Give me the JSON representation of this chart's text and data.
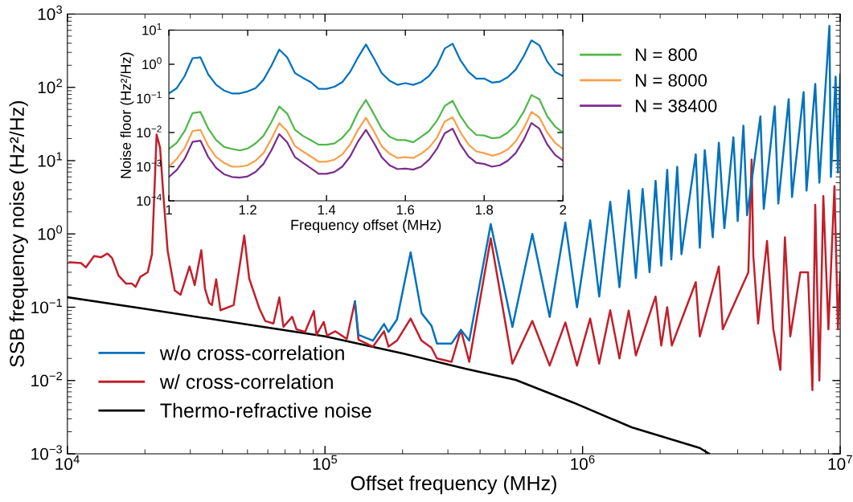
{
  "chart_data": [
    {
      "type": "line",
      "xlabel": "Offset frequency (MHz)",
      "ylabel": "SSB frequency noise (Hz²/Hz)",
      "log": "xy",
      "legend": "bottom left",
      "grid": false,
      "xlim": [
        10000,
        10000000
      ],
      "ylim": [
        0.001,
        1000
      ],
      "xticks": [
        {
          "value": 10000,
          "label": "10$^{4}$"
        },
        {
          "value": 100000,
          "label": "10$^{5}$"
        },
        {
          "value": 1000000,
          "label": "10$^{6}$"
        },
        {
          "value": 10000000,
          "label": "10$^{7}$"
        }
      ],
      "yticks": [
        {
          "value": 0.001,
          "label": "10$^{−3}$"
        },
        {
          "value": 0.01,
          "label": "10$^{−2}$"
        },
        {
          "value": 0.1,
          "label": "10$^{−1}$"
        },
        {
          "value": 1,
          "label": "10$^{0}$"
        },
        {
          "value": 10,
          "label": "10$^{1}$"
        },
        {
          "value": 100,
          "label": "10$^{2}$"
        },
        {
          "value": 1000,
          "label": "10$^{3}$"
        }
      ],
      "series": [
        {
          "name": "w/o cross-correlation",
          "color": "#0072bd",
          "x": [
            130700,
            134900,
            153500,
            169500,
            176500,
            190300,
            215000,
            237000,
            259000,
            272000,
            310000,
            337000,
            363000,
            440000,
            534000,
            638000,
            745000,
            857000,
            951000,
            1070000,
            1160000,
            1280000,
            1390000,
            1510000,
            1610000,
            1710000,
            1820000,
            1920000,
            2020000,
            2130000,
            2210000,
            2330000,
            2420000,
            2750000,
            2850000,
            2980000,
            3200000,
            3380000,
            3550000,
            3850000,
            4000000,
            4210000,
            4350000,
            4900000,
            5050000,
            5570000,
            5750000,
            6310000,
            6500000,
            7210000,
            7400000,
            8000000,
            8300000,
            9080000,
            9200000,
            9600000,
            9800000,
            10000000
          ],
          "values": [
            0.12,
            0.042,
            0.035,
            0.059,
            0.046,
            0.068,
            0.56,
            0.083,
            0.056,
            0.032,
            0.032,
            0.049,
            0.035,
            1.36,
            0.054,
            1.0,
            0.074,
            1.43,
            0.1,
            1.54,
            0.14,
            2.75,
            0.187,
            3.9,
            0.25,
            4.1,
            0.3,
            5.3,
            0.37,
            7.5,
            0.45,
            8.2,
            0.53,
            12.2,
            0.65,
            13.9,
            0.9,
            17.5,
            1.2,
            20.8,
            1.5,
            30,
            1.8,
            40,
            2.2,
            55,
            2.6,
            69,
            3.2,
            86,
            3.9,
            111,
            5,
            690,
            6,
            140,
            6.9,
            150
          ]
        },
        {
          "name": "w/ cross-correlation",
          "color": "#c0202c",
          "x": [
            10200,
            11300,
            11800,
            12700,
            13500,
            14300,
            14900,
            15800,
            16900,
            17800,
            18400,
            19200,
            20500,
            21300,
            22200,
            22900,
            23500,
            24500,
            26100,
            27500,
            29800,
            31200,
            33100,
            34200,
            35500,
            36400,
            37800,
            39300,
            44200,
            48600,
            50800,
            55700,
            58600,
            63100,
            66500,
            69000,
            74600,
            77500,
            83700,
            90500,
            92700,
            98900,
            101800,
            109700,
            121500,
            130700,
            134900,
            153500,
            169500,
            176500,
            190300,
            215000,
            237000,
            259000,
            272000,
            310000,
            337000,
            363000,
            440000,
            534000,
            638000,
            745000,
            857000,
            951000,
            1070000,
            1160000,
            1280000,
            1390000,
            1510000,
            1610000,
            1920000,
            2020000,
            2130000,
            2220000,
            2750000,
            2850000,
            3380000,
            3500000,
            4400000,
            4530000,
            4600000,
            4800000,
            5200000,
            5500000,
            5860000,
            6100000,
            6400000,
            7000000,
            7500000,
            7800000,
            8000000,
            8300000,
            8600000,
            9000000,
            9500000,
            9800000,
            10000000
          ],
          "values": [
            0.41,
            0.4,
            0.35,
            0.5,
            0.48,
            0.54,
            0.47,
            0.27,
            0.21,
            0.21,
            0.19,
            0.26,
            0.3,
            0.53,
            22.7,
            15,
            4.0,
            0.59,
            0.17,
            0.148,
            0.36,
            0.2,
            0.6,
            0.18,
            0.115,
            0.107,
            0.24,
            0.091,
            0.107,
            0.95,
            0.245,
            0.095,
            0.065,
            0.06,
            0.136,
            0.054,
            0.074,
            0.05,
            0.046,
            0.089,
            0.042,
            0.063,
            0.041,
            0.047,
            0.037,
            0.12,
            0.036,
            0.029,
            0.047,
            0.029,
            0.035,
            0.07,
            0.035,
            0.028,
            0.02,
            0.018,
            0.049,
            0.018,
            0.87,
            0.017,
            0.065,
            0.016,
            0.062,
            0.016,
            0.07,
            0.017,
            0.091,
            0.02,
            0.09,
            0.022,
            0.14,
            0.03,
            0.1,
            0.03,
            0.22,
            0.04,
            0.36,
            0.05,
            0.3,
            10.3,
            0.5,
            0.06,
            0.8,
            0.05,
            0.014,
            0.9,
            0.04,
            0.3,
            0.3,
            0.0074,
            2.5,
            0.01,
            3.3,
            0.05,
            4.5,
            0.05,
            0.3
          ]
        },
        {
          "name": "Thermo-refractive noise",
          "color": "#000000",
          "x": [
            10000,
            20000,
            50000,
            100000,
            200000,
            350000,
            550000,
            920000,
            1550000,
            2850000,
            3100000
          ],
          "values": [
            0.137,
            0.095,
            0.058,
            0.04,
            0.0234,
            0.0145,
            0.0102,
            0.005,
            0.0023,
            0.0012,
            0.001
          ]
        }
      ]
    },
    {
      "type": "line",
      "xlabel": "Frequency offset (MHz)",
      "ylabel": "Noise floor (Hz²/Hz)",
      "log": "y",
      "legend": "right",
      "grid": false,
      "xlim": [
        1,
        2
      ],
      "ylim": [
        0.0001,
        10
      ],
      "xticks": [
        1,
        1.2,
        1.4,
        1.6,
        1.8,
        2
      ],
      "yticks": [
        {
          "value": 0.0001,
          "label": "10$^{−4}$"
        },
        {
          "value": 0.001,
          "label": "10$^{−3}$"
        },
        {
          "value": 0.01,
          "label": "10$^{−2}$"
        },
        {
          "value": 0.1,
          "label": "10$^{−1}$"
        },
        {
          "value": 1,
          "label": "10$^{0}$"
        },
        {
          "value": 10,
          "label": "10$^{1}$"
        }
      ],
      "x": [
        1.0,
        1.02,
        1.04,
        1.06,
        1.08,
        1.1,
        1.12,
        1.14,
        1.16,
        1.18,
        1.2,
        1.22,
        1.24,
        1.26,
        1.28,
        1.3,
        1.32,
        1.34,
        1.36,
        1.38,
        1.4,
        1.42,
        1.44,
        1.46,
        1.48,
        1.5,
        1.52,
        1.54,
        1.56,
        1.58,
        1.6,
        1.62,
        1.64,
        1.66,
        1.68,
        1.7,
        1.72,
        1.74,
        1.76,
        1.78,
        1.8,
        1.82,
        1.84,
        1.86,
        1.88,
        1.9,
        1.92,
        1.94,
        1.96,
        1.98,
        2.0
      ],
      "series": [
        {
          "color": "#0072bd",
          "values": [
            0.14,
            0.2,
            0.45,
            1.5,
            1.6,
            0.5,
            0.25,
            0.17,
            0.14,
            0.14,
            0.16,
            0.2,
            0.35,
            0.9,
            2.7,
            1.6,
            0.55,
            0.4,
            0.3,
            0.19,
            0.19,
            0.22,
            0.3,
            0.6,
            1.6,
            3.8,
            1.5,
            0.55,
            0.33,
            0.25,
            0.28,
            0.25,
            0.3,
            0.45,
            0.9,
            2.9,
            4.0,
            1.3,
            0.6,
            0.38,
            0.38,
            0.29,
            0.31,
            0.42,
            0.7,
            1.7,
            5.0,
            3.6,
            1.2,
            0.6,
            0.45
          ]
        },
        {
          "name": "N = 800",
          "color": "#50b848",
          "values": [
            0.0033,
            0.005,
            0.011,
            0.037,
            0.04,
            0.013,
            0.006,
            0.0038,
            0.0033,
            0.003,
            0.0034,
            0.0048,
            0.008,
            0.02,
            0.058,
            0.036,
            0.012,
            0.008,
            0.006,
            0.0044,
            0.0044,
            0.0048,
            0.007,
            0.013,
            0.04,
            0.09,
            0.035,
            0.013,
            0.0075,
            0.006,
            0.006,
            0.0052,
            0.0075,
            0.011,
            0.022,
            0.06,
            0.085,
            0.03,
            0.014,
            0.0085,
            0.0082,
            0.0068,
            0.0072,
            0.01,
            0.017,
            0.04,
            0.125,
            0.095,
            0.03,
            0.015,
            0.01
          ]
        },
        {
          "name": "N = 8000",
          "color": "#f7a04a",
          "values": [
            0.001,
            0.0017,
            0.0035,
            0.011,
            0.012,
            0.004,
            0.0019,
            0.0013,
            0.001,
            0.001,
            0.0011,
            0.0015,
            0.0025,
            0.0065,
            0.019,
            0.011,
            0.004,
            0.0028,
            0.002,
            0.0014,
            0.0014,
            0.0016,
            0.0023,
            0.0045,
            0.012,
            0.027,
            0.011,
            0.004,
            0.0024,
            0.0018,
            0.0019,
            0.0018,
            0.0024,
            0.0036,
            0.007,
            0.021,
            0.028,
            0.01,
            0.0045,
            0.0028,
            0.0025,
            0.0021,
            0.0024,
            0.0032,
            0.0055,
            0.013,
            0.04,
            0.028,
            0.01,
            0.005,
            0.0033
          ]
        },
        {
          "name": "N = 38400",
          "color": "#7b2d8e",
          "values": [
            0.0005,
            0.0008,
            0.0017,
            0.0053,
            0.0058,
            0.0019,
            0.00092,
            0.0006,
            0.0005,
            0.00048,
            0.00052,
            0.0007,
            0.0012,
            0.003,
            0.009,
            0.0052,
            0.0019,
            0.0013,
            0.0009,
            0.00062,
            0.00062,
            0.0007,
            0.001,
            0.002,
            0.0055,
            0.012,
            0.005,
            0.0019,
            0.0011,
            0.00085,
            0.00088,
            0.00082,
            0.001,
            0.0016,
            0.0033,
            0.0095,
            0.013,
            0.0044,
            0.002,
            0.0013,
            0.0012,
            0.001,
            0.0011,
            0.0015,
            0.0025,
            0.006,
            0.019,
            0.013,
            0.0045,
            0.0022,
            0.0015
          ]
        }
      ]
    }
  ]
}
